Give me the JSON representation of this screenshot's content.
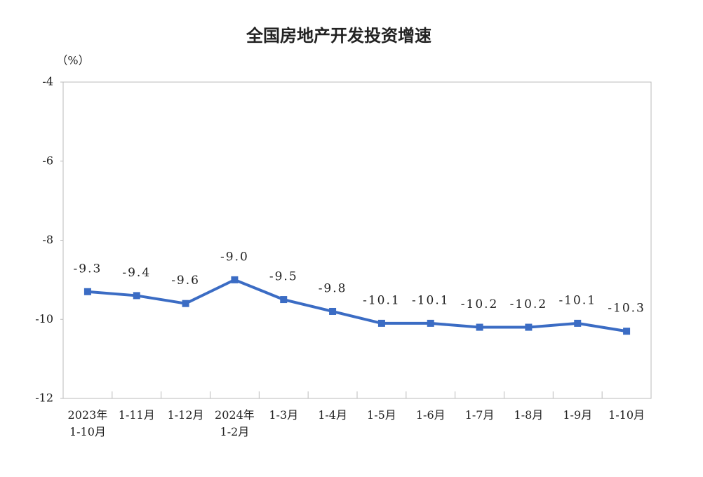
{
  "chart_data": {
    "type": "line",
    "title": "全国房地产开发投资增速",
    "y_axis_label": "（%）",
    "categories": [
      [
        "2023年",
        "1-10月"
      ],
      [
        "1-11月"
      ],
      [
        "1-12月"
      ],
      [
        "2024年",
        "1-2月"
      ],
      [
        "1-3月"
      ],
      [
        "1-4月"
      ],
      [
        "1-5月"
      ],
      [
        "1-6月"
      ],
      [
        "1-7月"
      ],
      [
        "1-8月"
      ],
      [
        "1-9月"
      ],
      [
        "1-10月"
      ]
    ],
    "values": [
      -9.3,
      -9.4,
      -9.6,
      -9.0,
      -9.5,
      -9.8,
      -10.1,
      -10.1,
      -10.2,
      -10.2,
      -10.1,
      -10.3
    ],
    "value_labels": [
      "-9.3",
      "-9.4",
      "-9.6",
      "-9.0",
      "-9.5",
      "-9.8",
      "-10.1",
      "-10.1",
      "-10.2",
      "-10.2",
      "-10.1",
      "-10.3"
    ],
    "color": "#3b6cc4",
    "ylim": [
      -12,
      -4
    ],
    "yticks": [
      -12,
      -10,
      -8,
      -6,
      -4
    ],
    "grid": false
  }
}
